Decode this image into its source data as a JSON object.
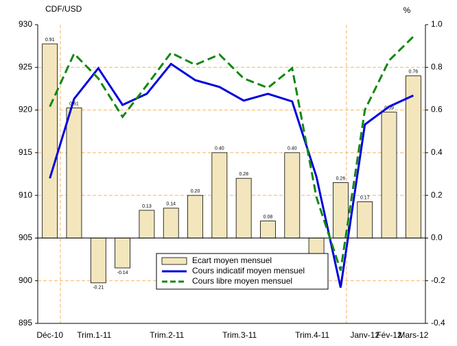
{
  "chart_data": {
    "type": "bar_line",
    "y_label": "CDF/USD",
    "y2_label": "%",
    "categories": [
      "Déc-10",
      null,
      "Trim.1-11",
      null,
      null,
      "Trim.2-11",
      null,
      null,
      "Trim.3-11",
      null,
      null,
      "Trim.4-11",
      null,
      "Janv-12",
      "Fév-12",
      "Mars-12"
    ],
    "ylim": [
      895,
      930
    ],
    "yticks": [
      895,
      900,
      905,
      910,
      915,
      920,
      925,
      930
    ],
    "y2lim": [
      -0.4,
      1.0
    ],
    "y2ticks": [
      -0.4,
      -0.2,
      {
        "value": 0,
        "label": "0.0"
      },
      0.2,
      0.4,
      0.6,
      0.8,
      {
        "value": 1,
        "label": "1.0"
      }
    ],
    "grid": true,
    "series": [
      {
        "name": "Ecart moyen mensuel",
        "kind": "bar",
        "axis": "y2",
        "color": "#f3e6bd",
        "values": [
          0.91,
          0.61,
          -0.21,
          -0.14,
          0.13,
          0.14,
          0.2,
          0.4,
          0.28,
          0.08,
          0.4,
          -0.08,
          0.26,
          0.17,
          0.59,
          0.76
        ],
        "value_labels": [
          "0.91",
          "0.61",
          "-0.21",
          "-0.14",
          "0.13",
          "0.14",
          "0.20",
          "0.40",
          "0.28",
          "0.08",
          "0.40",
          null,
          "0.26",
          "0.17",
          "0.59",
          "0.76"
        ]
      },
      {
        "name": "Cours indicatif moyen mensuel",
        "kind": "line",
        "color": "#0000dd",
        "values": [
          912,
          921.3,
          924.9,
          920.6,
          921.9,
          925.4,
          923.5,
          922.7,
          921.1,
          921.9,
          921,
          912.2,
          899.2,
          918.3,
          920.4,
          921.7
        ]
      },
      {
        "name": "Cours libre moyen mensuel",
        "kind": "line",
        "dashed": true,
        "color": "#118811",
        "values": [
          920.4,
          926.6,
          923.7,
          919.2,
          922.9,
          926.7,
          925.3,
          926.5,
          923.7,
          922.6,
          924.9,
          909.8,
          901.2,
          920,
          925.8,
          928.6
        ]
      }
    ]
  }
}
